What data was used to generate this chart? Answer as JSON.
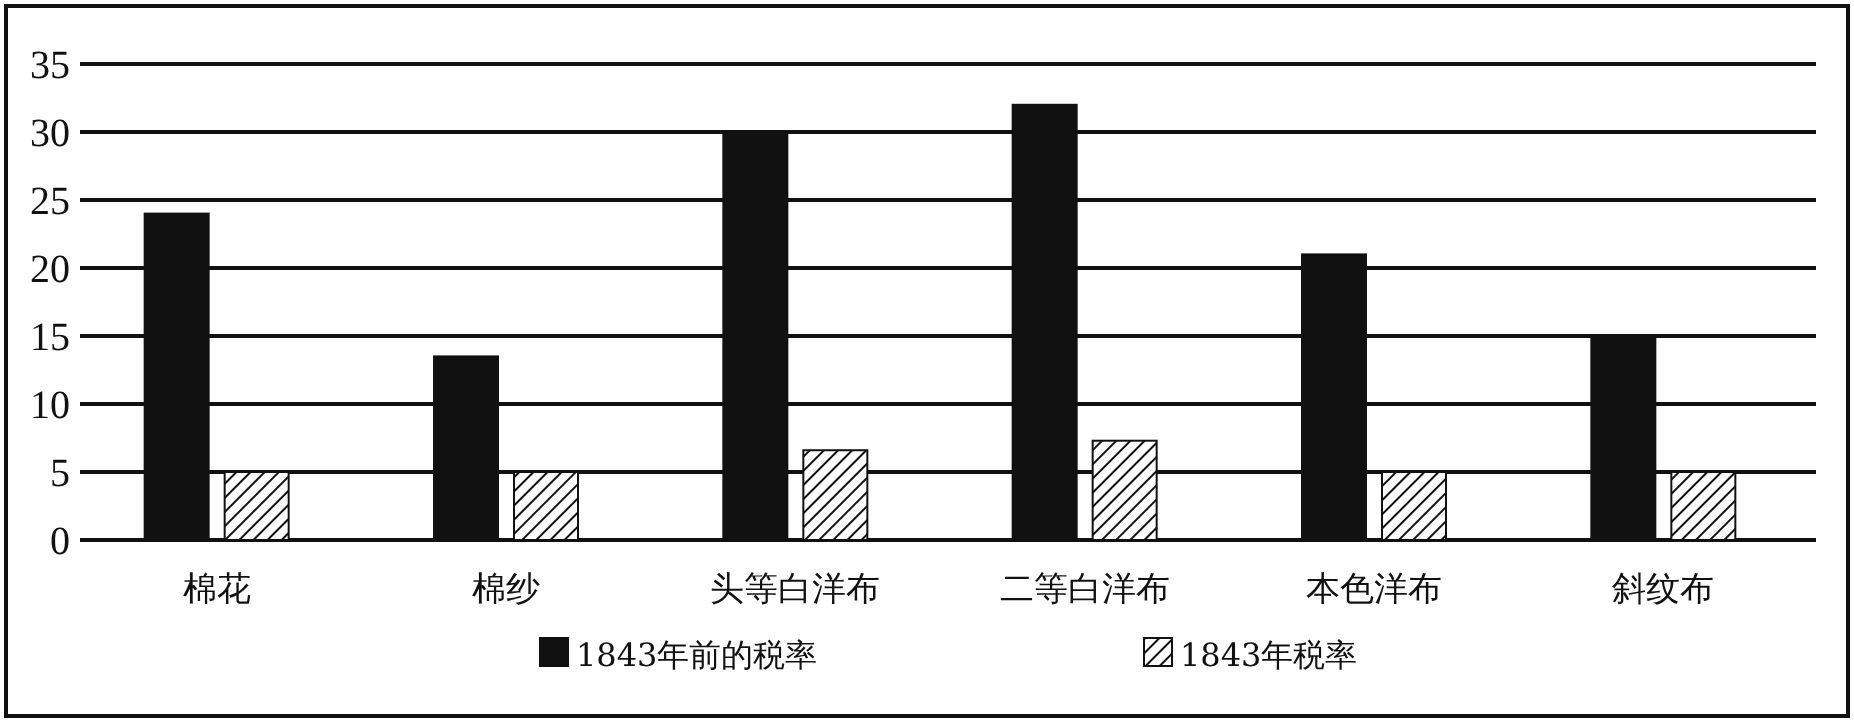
{
  "chart_data": {
    "type": "bar",
    "categories": [
      "棉花",
      "棉纱",
      "头等白洋布",
      "二等白洋布",
      "本色洋布",
      "斜纹布"
    ],
    "series": [
      {
        "name": "1843年前的税率",
        "color": "#111111",
        "values": [
          24,
          13.5,
          30,
          32,
          21,
          15
        ]
      },
      {
        "name": "1843年税率",
        "color": "#111111",
        "values": [
          5,
          5,
          6.6,
          7.3,
          5,
          5
        ]
      }
    ],
    "ylim": [
      0,
      35
    ],
    "yticks": [
      0,
      5,
      10,
      15,
      20,
      25,
      30,
      35
    ],
    "grid": "y",
    "legend": "bottom"
  }
}
